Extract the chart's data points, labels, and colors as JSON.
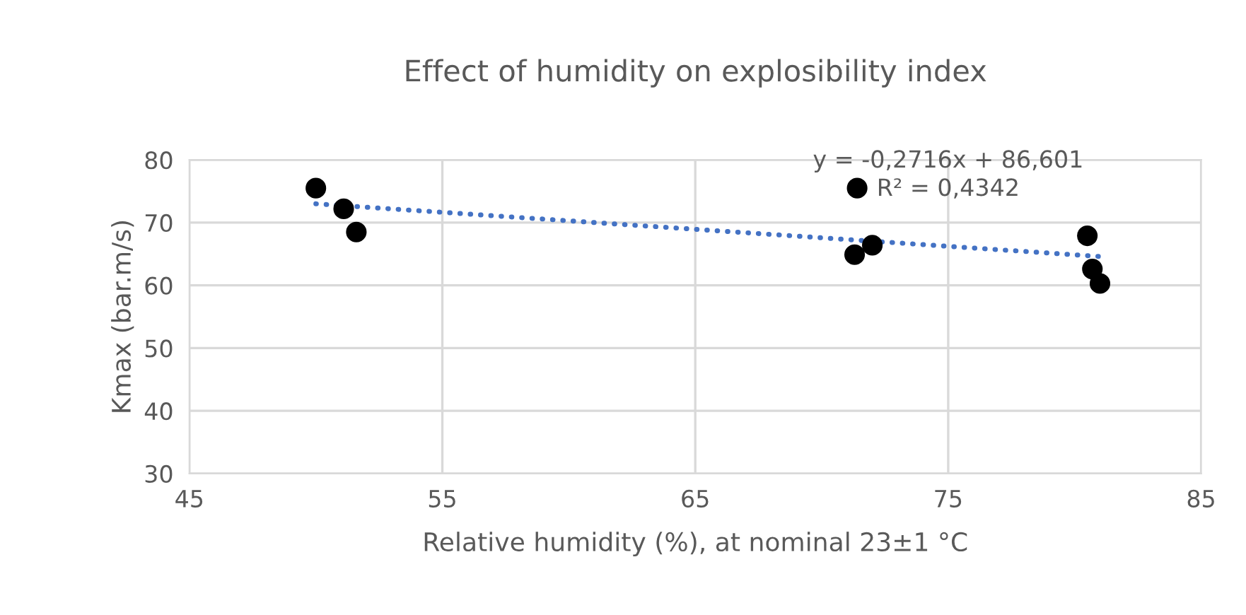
{
  "chart_data": {
    "type": "scatter",
    "title": "Effect of humidity on explosibility index",
    "xlabel": "Relative humidity (%), at nominal 23±1 °C",
    "ylabel": "Kmax (bar.m/s)",
    "xlim": [
      45,
      85
    ],
    "xticks": [
      45,
      55,
      65,
      75,
      85
    ],
    "ylim": [
      30,
      80
    ],
    "yticks": [
      30,
      40,
      50,
      60,
      70,
      80
    ],
    "grid": true,
    "legend": false,
    "series": [
      {
        "color": "#000000",
        "marker": "circle",
        "x": [
          50.0,
          51.1,
          51.6,
          71.4,
          71.3,
          72.0,
          80.5,
          80.7,
          81.0
        ],
        "values": [
          75.5,
          72.2,
          68.5,
          75.5,
          64.9,
          66.4,
          67.9,
          62.6,
          60.3
        ]
      },
      {
        "type": "line",
        "color": "#4472c4",
        "line_style": "dotted",
        "marker": "none",
        "x": [
          50.0,
          81.0
        ],
        "values": [
          73.0,
          64.6
        ]
      }
    ],
    "annotations": [
      "y = -0,2716x + 86,601\nR² = 0,4342"
    ]
  }
}
